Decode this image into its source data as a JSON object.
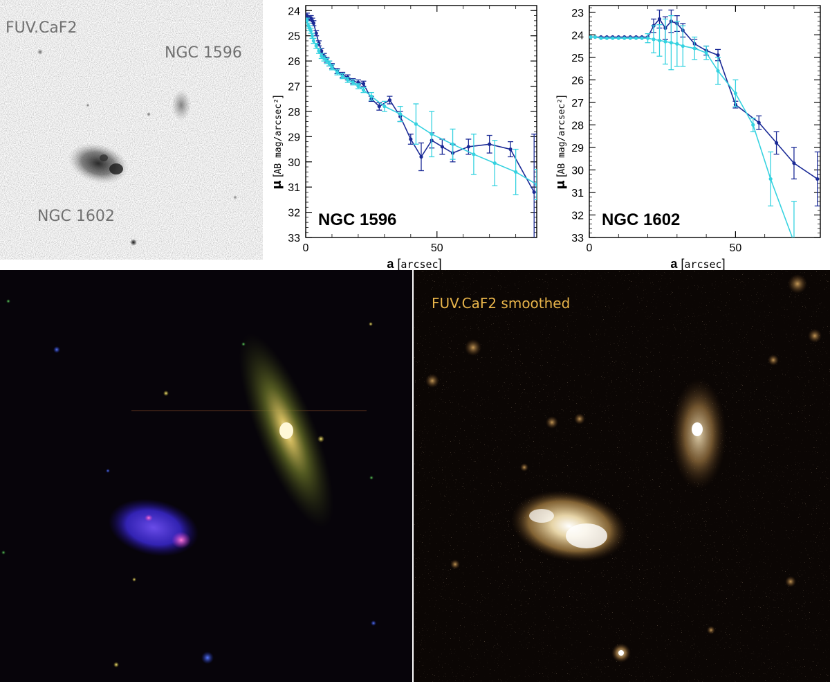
{
  "top_left_panel": {
    "label_band": "FUV.CaF2",
    "label_galaxy_a": "NGC 1596",
    "label_galaxy_b": "NGC 1602"
  },
  "bottom_right_panel": {
    "label": "FUV.CaF2 smoothed"
  },
  "colors": {
    "profile_dark": "#1a2a96",
    "profile_light": "#35d2e0",
    "smoothed_label": "#e8b44a",
    "gray_label": "#707070"
  },
  "chart_data": [
    {
      "type": "line",
      "annotation": "NGC 1596",
      "xlabel_symbol": "a",
      "xlabel_unit": "arcsec",
      "ylabel_symbol": "μ",
      "ylabel_unit": "AB mag/arcsec²",
      "xlim": [
        0,
        88
      ],
      "ylim": [
        33,
        23.8
      ],
      "x_ticks": [
        0,
        50
      ],
      "y_ticks": [
        24,
        25,
        26,
        27,
        28,
        29,
        30,
        31,
        32,
        33
      ],
      "series": [
        {
          "color": "#1a2a96",
          "x": [
            0.5,
            1,
            1.5,
            2,
            2.5,
            3,
            4,
            5,
            6,
            7,
            8,
            9,
            10,
            12,
            14,
            16,
            18,
            20,
            22,
            25,
            28,
            32,
            36,
            40,
            44,
            48,
            52,
            56,
            62,
            70,
            78,
            87
          ],
          "y": [
            24.2,
            24.3,
            24.3,
            24.3,
            24.4,
            24.5,
            24.9,
            25.3,
            25.6,
            25.8,
            25.95,
            26.1,
            26.2,
            26.4,
            26.55,
            26.65,
            26.8,
            26.85,
            26.9,
            27.5,
            27.8,
            27.55,
            28.2,
            29.1,
            29.8,
            29.15,
            29.4,
            29.65,
            29.4,
            29.3,
            29.5,
            31.2
          ],
          "err": [
            0.1,
            0.1,
            0.1,
            0.1,
            0.1,
            0.1,
            0.1,
            0.1,
            0.1,
            0.1,
            0.1,
            0.1,
            0.1,
            0.1,
            0.1,
            0.1,
            0.1,
            0.1,
            0.1,
            0.1,
            0.15,
            0.15,
            0.2,
            0.2,
            0.55,
            0.3,
            0.3,
            0.35,
            0.3,
            0.35,
            0.3,
            2.3
          ]
        },
        {
          "color": "#35d2e0",
          "x": [
            0.5,
            1,
            1.5,
            2,
            2.5,
            3,
            4,
            5,
            6,
            7,
            8,
            9,
            10,
            12,
            14,
            16,
            18,
            20,
            22,
            25,
            30,
            36,
            42,
            48,
            56,
            64,
            72,
            80,
            88
          ],
          "y": [
            24.4,
            24.6,
            24.7,
            24.8,
            25.0,
            25.2,
            25.4,
            25.6,
            25.8,
            25.9,
            26.0,
            26.1,
            26.25,
            26.45,
            26.6,
            26.75,
            26.85,
            27.0,
            27.15,
            27.4,
            27.8,
            28.1,
            28.5,
            28.9,
            29.3,
            29.7,
            30.05,
            30.4,
            30.9
          ],
          "err": [
            0.1,
            0.1,
            0.1,
            0.1,
            0.1,
            0.1,
            0.1,
            0.1,
            0.1,
            0.1,
            0.1,
            0.1,
            0.1,
            0.1,
            0.1,
            0.1,
            0.1,
            0.1,
            0.1,
            0.15,
            0.2,
            0.3,
            0.8,
            0.9,
            0.6,
            0.8,
            0.9,
            0.9,
            0.6
          ]
        }
      ]
    },
    {
      "type": "line",
      "annotation": "NGC 1602",
      "xlabel_symbol": "a",
      "xlabel_unit": "arcsec",
      "ylabel_symbol": "μ",
      "ylabel_unit": "AB mag/arcsec²",
      "xlim": [
        0,
        79
      ],
      "ylim": [
        33,
        22.7
      ],
      "x_ticks": [
        0,
        50
      ],
      "y_ticks": [
        23,
        24,
        25,
        26,
        27,
        28,
        29,
        30,
        31,
        32,
        33
      ],
      "series": [
        {
          "color": "#1a2a96",
          "x": [
            0.5,
            2,
            4,
            6,
            8,
            10,
            12,
            14,
            16,
            18,
            20,
            22,
            24,
            26,
            28,
            30,
            32,
            36,
            40,
            44,
            50,
            58,
            64,
            70,
            78
          ],
          "y": [
            24.1,
            24.1,
            24.1,
            24.1,
            24.1,
            24.1,
            24.1,
            24.1,
            24.1,
            24.1,
            24.1,
            23.6,
            23.3,
            23.7,
            23.4,
            23.5,
            23.8,
            24.4,
            24.7,
            24.9,
            27.1,
            27.9,
            28.8,
            29.7,
            30.4
          ],
          "err": [
            0.05,
            0.05,
            0.05,
            0.05,
            0.05,
            0.05,
            0.05,
            0.05,
            0.05,
            0.05,
            0.05,
            0.3,
            0.4,
            0.5,
            0.5,
            0.35,
            0.3,
            0.2,
            0.2,
            0.25,
            0.15,
            0.3,
            0.5,
            0.7,
            1.2
          ]
        },
        {
          "color": "#35d2e0",
          "x": [
            0.5,
            2,
            4,
            6,
            8,
            10,
            12,
            14,
            16,
            18,
            20,
            22,
            24,
            26,
            28,
            30,
            32,
            36,
            40,
            44,
            50,
            56,
            62,
            70
          ],
          "y": [
            24.1,
            24.1,
            24.15,
            24.15,
            24.15,
            24.15,
            24.15,
            24.15,
            24.15,
            24.15,
            24.15,
            24.2,
            24.25,
            24.3,
            24.35,
            24.4,
            24.5,
            24.6,
            24.8,
            25.6,
            26.6,
            28.0,
            30.4,
            33.2
          ],
          "err": [
            0.05,
            0.05,
            0.05,
            0.05,
            0.05,
            0.05,
            0.05,
            0.05,
            0.05,
            0.05,
            0.2,
            0.6,
            0.7,
            1.0,
            1.2,
            1.0,
            0.9,
            0.5,
            0.3,
            0.6,
            0.6,
            0.3,
            1.2,
            1.8
          ]
        }
      ]
    }
  ]
}
